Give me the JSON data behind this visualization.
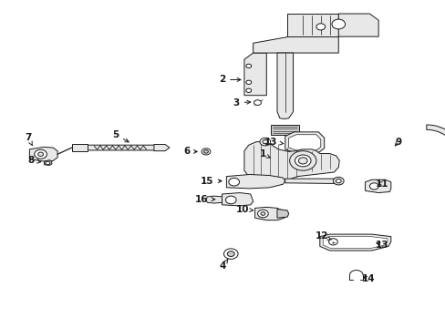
{
  "background_color": "#ffffff",
  "fig_width": 4.89,
  "fig_height": 3.6,
  "dpi": 100,
  "label_positions": {
    "1": [
      0.598,
      0.498,
      0.618,
      0.51
    ],
    "2": [
      0.508,
      0.758,
      0.548,
      0.758
    ],
    "3": [
      0.548,
      0.69,
      0.578,
      0.69
    ],
    "4": [
      0.508,
      0.188,
      0.518,
      0.22
    ],
    "5": [
      0.272,
      0.588,
      0.305,
      0.558
    ],
    "6": [
      0.435,
      0.538,
      0.462,
      0.538
    ],
    "7": [
      0.072,
      0.582,
      0.082,
      0.558
    ],
    "8": [
      0.082,
      0.51,
      0.108,
      0.51
    ],
    "9": [
      0.882,
      0.565,
      0.87,
      0.545
    ],
    "10": [
      0.555,
      0.348,
      0.578,
      0.348
    ],
    "11": [
      0.852,
      0.435,
      0.838,
      0.442
    ],
    "12": [
      0.735,
      0.282,
      0.758,
      0.272
    ],
    "13a": [
      0.618,
      0.565,
      0.648,
      0.552
    ],
    "13b": [
      0.852,
      0.248,
      0.832,
      0.258
    ],
    "14": [
      0.825,
      0.148,
      0.802,
      0.158
    ],
    "15": [
      0.478,
      0.445,
      0.505,
      0.445
    ],
    "16": [
      0.468,
      0.388,
      0.495,
      0.388
    ]
  }
}
